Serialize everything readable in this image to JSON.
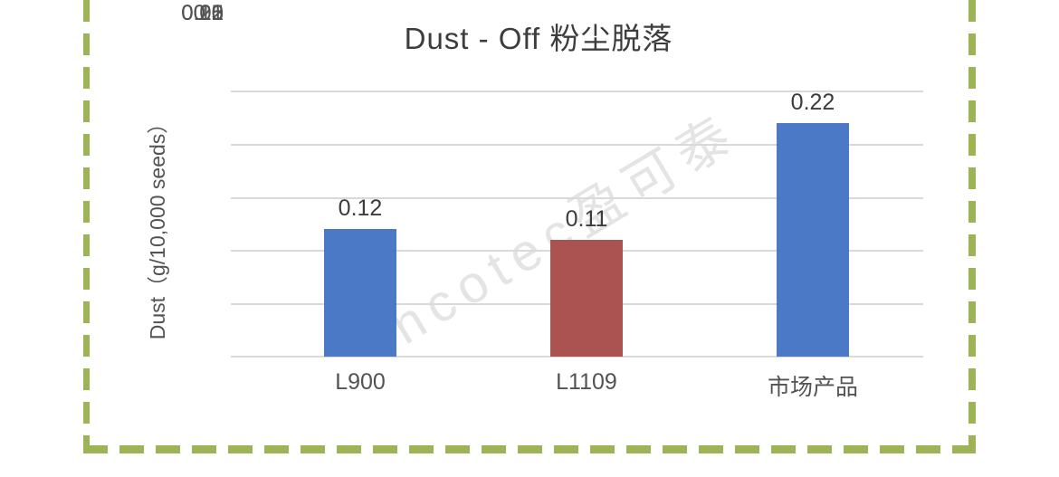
{
  "title": "Dust - Off 粉尘脱落",
  "watermark": "Incotec盈可泰",
  "chart_data": {
    "type": "bar",
    "title": "Dust - Off 粉尘脱落",
    "categories": [
      "L900",
      "L1109",
      "市场产品"
    ],
    "values": [
      0.12,
      0.11,
      0.22
    ],
    "data_labels": [
      "0.12",
      "0.11",
      "0.22"
    ],
    "bar_colors": [
      "#4b79c6",
      "#ab5350",
      "#4b79c6"
    ],
    "ylabel": "Dust（g/10,000 seeds）",
    "xlabel": "",
    "ylim": [
      0,
      0.25
    ],
    "ytick_labels": [
      "0.25",
      "0.2",
      "0.15",
      "0.1",
      "0.05",
      "0"
    ],
    "grid": true,
    "legend": false
  },
  "style": {
    "bar_blue": "#4b79c6",
    "bar_red": "#ab5350",
    "border_green": "#9db456",
    "gridline_gray": "#d9d9d9",
    "tick_text_gray": "#535353",
    "title_gray": "#3d3d3d"
  }
}
